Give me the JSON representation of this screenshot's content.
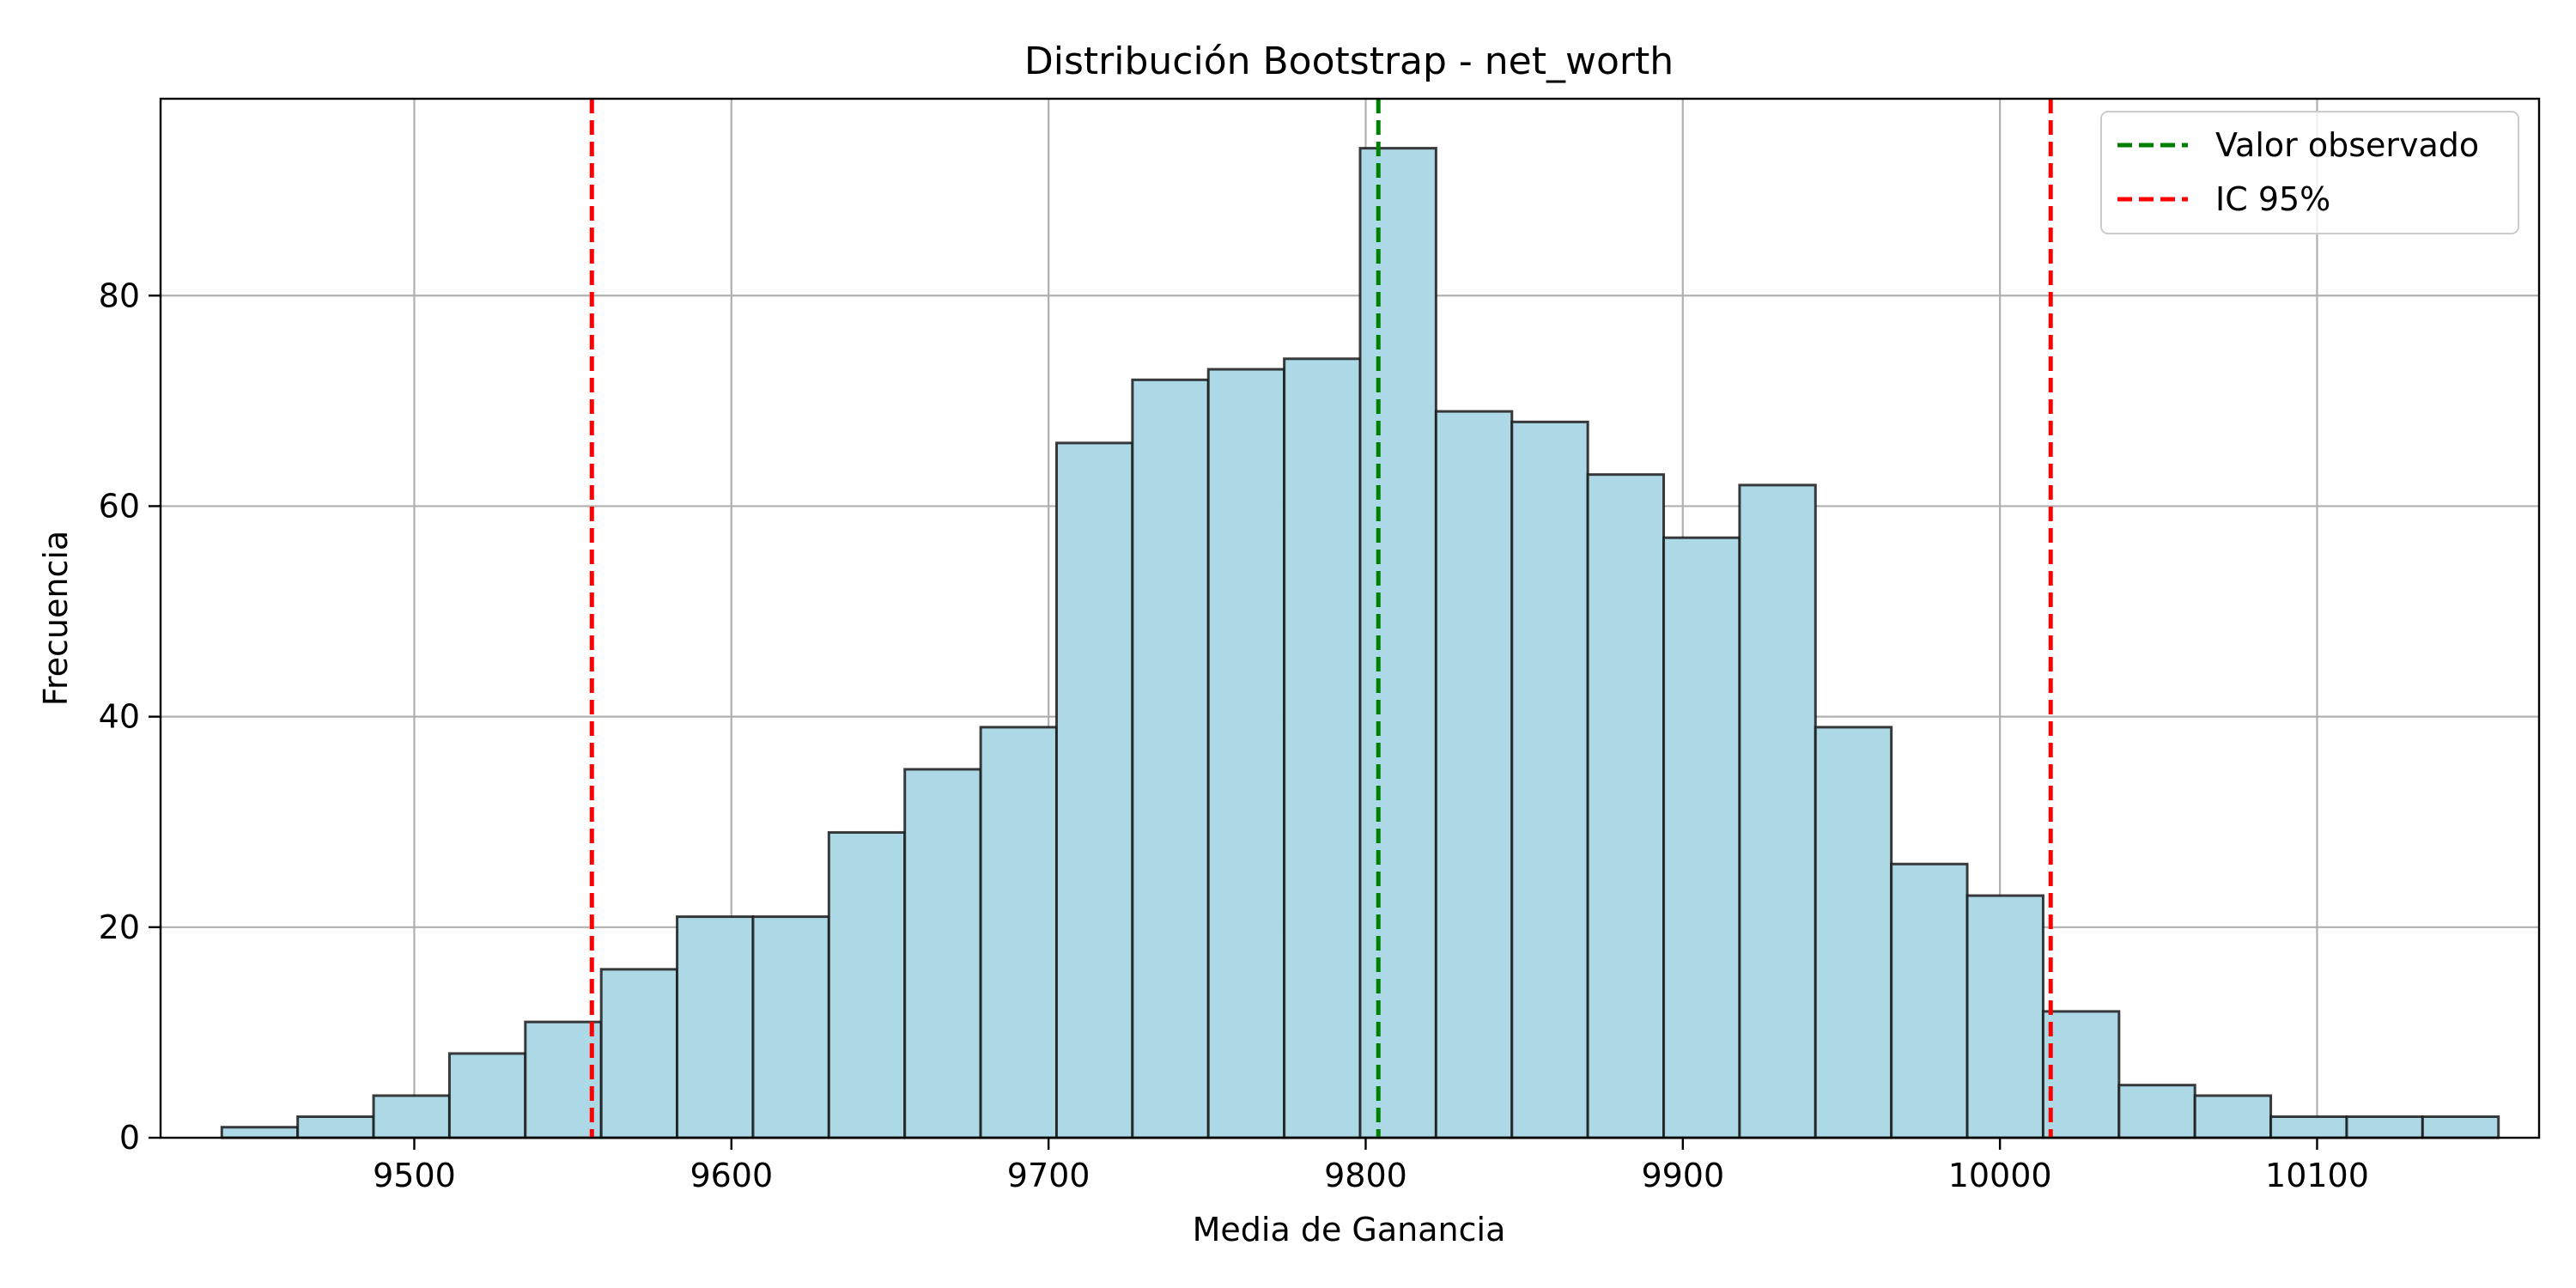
{
  "chart_data": {
    "type": "bar",
    "title": "Distribución Bootstrap - net_worth",
    "xlabel": "Media de Ganancia",
    "ylabel": "Frecuencia",
    "xlim": [
      9420,
      10170
    ],
    "ylim": [
      0,
      98.7
    ],
    "xticks": [
      9500,
      9600,
      9700,
      9800,
      9900,
      10000,
      10100
    ],
    "yticks": [
      0,
      20,
      40,
      60,
      80
    ],
    "xtick_labels": [
      "9500",
      "9600",
      "9700",
      "9800",
      "9900",
      "10000",
      "10100"
    ],
    "ytick_labels": [
      "0",
      "20",
      "40",
      "60",
      "80"
    ],
    "bin_start": 9439.3,
    "bin_width": 23.93,
    "counts": [
      1,
      2,
      4,
      8,
      11,
      16,
      21,
      21,
      29,
      35,
      39,
      66,
      72,
      73,
      74,
      94,
      69,
      68,
      63,
      57,
      62,
      39,
      26,
      23,
      12,
      5,
      4,
      2,
      2,
      2
    ],
    "bar_color": "#add8e6",
    "bar_edge_color": "#1a1a1a",
    "grid": true,
    "vlines": [
      {
        "name": "Valor observado",
        "x": 9804,
        "color": "#008000",
        "style": "dashed"
      },
      {
        "name": "IC 95%",
        "x": 9556,
        "color": "#ff0000",
        "style": "dashed"
      },
      {
        "name": "IC 95%",
        "x": 10016,
        "color": "#ff0000",
        "style": "dashed"
      }
    ],
    "legend": {
      "position": "top-right",
      "entries": [
        {
          "label": "Valor observado",
          "color": "#008000"
        },
        {
          "label": "IC 95%",
          "color": "#ff0000"
        }
      ]
    }
  }
}
